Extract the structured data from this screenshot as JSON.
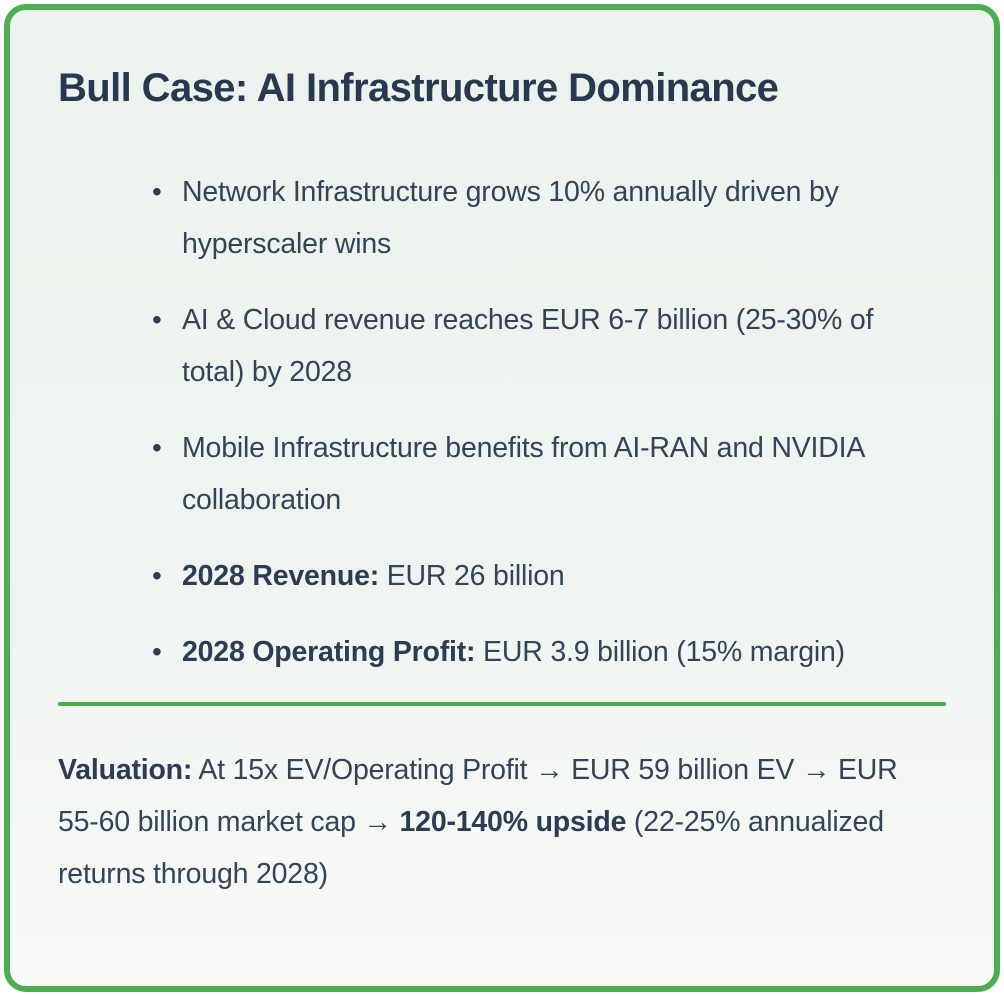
{
  "card": {
    "title": "Bull Case: AI Infrastructure Dominance",
    "bullet_char": "•",
    "bullets": [
      {
        "bold": "",
        "text": "Network Infrastructure grows 10% annually driven by hyperscaler wins"
      },
      {
        "bold": "",
        "text": "AI & Cloud revenue reaches EUR 6-7 billion (25-30% of total) by 2028"
      },
      {
        "bold": "",
        "text": "Mobile Infrastructure benefits from AI-RAN and NVIDIA collaboration"
      },
      {
        "bold": "2028 Revenue:",
        "text": " EUR 26 billion"
      },
      {
        "bold": "2028 Operating Profit:",
        "text": " EUR 3.9 billion (15% margin)"
      }
    ],
    "valuation": {
      "label": "Valuation:",
      "text_before_bold": " At 15x EV/Operating Profit → EUR 59 billion EV → EUR 55-60 billion market cap → ",
      "bold": "120-140% upside",
      "text_after_bold": " (22-25% annualized returns through 2028)"
    },
    "colors": {
      "accent_green": "#4cae50",
      "card_background": "#eff4f0",
      "title_text": "#28384e",
      "body_text": "#334459"
    }
  }
}
